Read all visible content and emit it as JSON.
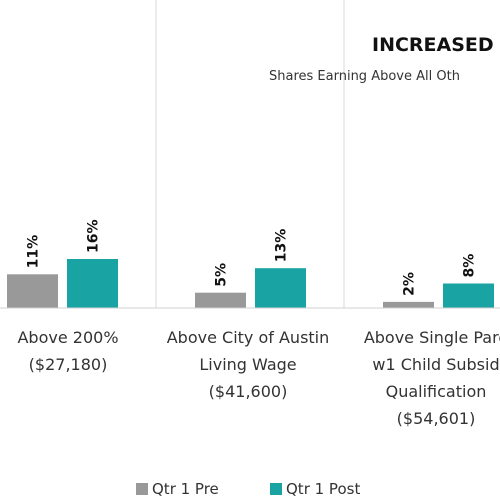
{
  "chart_data": {
    "type": "bar",
    "title": "INCREASED",
    "subtitle": "Shares Earning Above All Oth",
    "categories": [
      [
        "Above 200%",
        "($27,180)"
      ],
      [
        "Above City of Austin",
        "Living Wage",
        "($41,600)"
      ],
      [
        "Above Single Pare",
        "w1 Child Subsid",
        "Qualification",
        "($54,601)"
      ]
    ],
    "series": [
      {
        "name": "Qtr 1 Pre",
        "values": [
          11,
          5,
          2
        ],
        "labels": [
          "11%",
          "5%",
          "2%"
        ],
        "color": "#999999"
      },
      {
        "name": "Qtr 1 Post",
        "values": [
          16,
          13,
          8
        ],
        "labels": [
          "16%",
          "13%",
          "8%"
        ],
        "color": "#1aa3a3"
      }
    ],
    "ymax": 16,
    "grid": false,
    "legend_position": "bottom"
  }
}
